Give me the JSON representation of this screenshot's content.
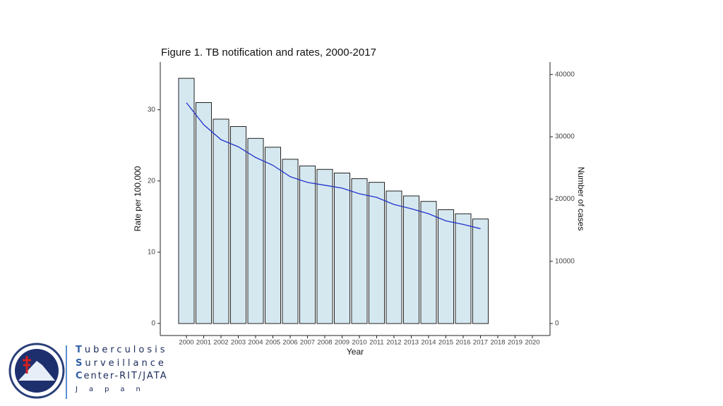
{
  "chart_data": {
    "type": "bar-line",
    "title": "Figure 1. TB notification and rates, 2000-2017",
    "x_label": "Year",
    "y_label": "Rate per 100,000",
    "y2_label": "Number of cases",
    "x": [
      2000,
      2001,
      2002,
      2003,
      2004,
      2005,
      2006,
      2007,
      2008,
      2009,
      2010,
      2011,
      2012,
      2013,
      2014,
      2015,
      2016,
      2017
    ],
    "series": [
      {
        "name": "Number of cases",
        "type": "bar",
        "axis": "y2",
        "color": "#d5e8f0",
        "values": [
          39384,
          35489,
          32828,
          31638,
          29736,
          28319,
          26384,
          25311,
          24760,
          24170,
          23261,
          22681,
          21283,
          20495,
          19615,
          18280,
          17625,
          16789
        ]
      },
      {
        "name": "Rate per 100,000",
        "type": "line",
        "axis": "y",
        "color": "#2233cc",
        "values": [
          31.0,
          27.9,
          25.8,
          24.8,
          23.3,
          22.2,
          20.6,
          19.8,
          19.4,
          19.0,
          18.2,
          17.7,
          16.7,
          16.1,
          15.4,
          14.4,
          13.9,
          13.3
        ]
      }
    ],
    "xlim": [
      1998.49,
      2021.02
    ],
    "xticks": [
      2000,
      2001,
      2002,
      2003,
      2004,
      2005,
      2006,
      2007,
      2008,
      2009,
      2010,
      2011,
      2012,
      2013,
      2014,
      2015,
      2016,
      2017,
      2018,
      2019,
      2020
    ],
    "ylim": [
      -1.7,
      36.7
    ],
    "yticks": [
      0,
      10,
      20,
      30
    ],
    "y2lim": [
      -1925,
      42000
    ],
    "y2ticks": [
      0,
      10000,
      20000,
      30000,
      40000
    ],
    "grid": false
  },
  "logo": {
    "lines": [
      "Tuberculosis",
      "Surveillance",
      "Center-RIT/JATA",
      "Japan"
    ]
  }
}
